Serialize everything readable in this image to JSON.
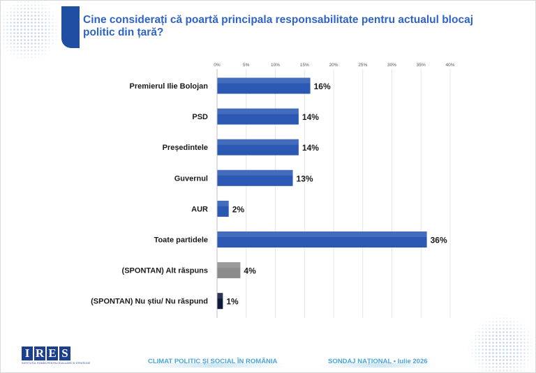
{
  "title": "Cine considerați că poartă principala responsabilitate pentru actualul blocaj politic din țară?",
  "chart_data": {
    "type": "bar",
    "orientation": "horizontal",
    "xlim": [
      0,
      40
    ],
    "xticks": [
      "0%",
      "5%",
      "10%",
      "15%",
      "20%",
      "25%",
      "30%",
      "35%",
      "40%"
    ],
    "xtick_values": [
      0,
      5,
      10,
      15,
      20,
      25,
      30,
      35,
      40
    ],
    "categories": [
      "Premierul Ilie Bolojan",
      "PSD",
      "Președintele",
      "Guvernul",
      "AUR",
      "Toate partidele",
      "(SPONTAN) Alt răspuns",
      "(SPONTAN) Nu știu/ Nu răspund"
    ],
    "values": [
      16,
      14,
      14,
      13,
      2,
      36,
      4,
      1
    ],
    "labels": [
      "16%",
      "14%",
      "14%",
      "13%",
      "2%",
      "36%",
      "4%",
      "1%"
    ],
    "colors": [
      "#2b58b3",
      "#2b58b3",
      "#2b58b3",
      "#2b58b3",
      "#2b58b3",
      "#2b58b3",
      "#8c8c8c",
      "#0d1a3a"
    ]
  },
  "footer": {
    "logo_text": "IRES",
    "logo_letters": [
      "I",
      "R",
      "E",
      "S"
    ],
    "logo_subtitle": "INSTITUTUL ROMÂN PENTRU EVALUARE ȘI STRATEGIE",
    "left_text": "CLIMAT POLITIC ȘI SOCIAL ÎN ROMÂNIA",
    "right_text": "SONDAJ NAȚIONAL • Iulie 2026"
  }
}
